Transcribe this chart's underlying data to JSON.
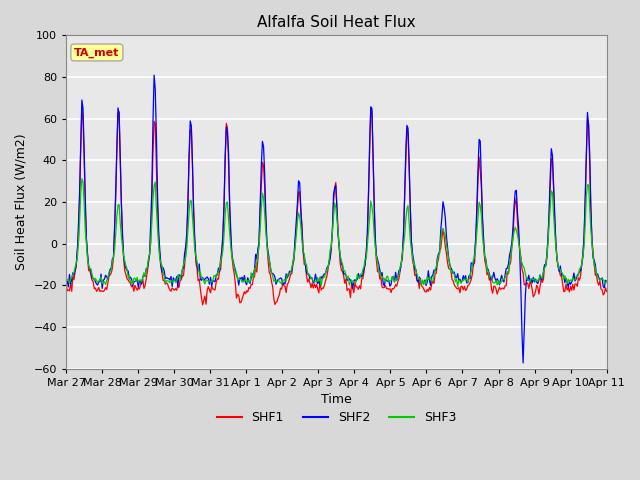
{
  "title": "Alfalfa Soil Heat Flux",
  "ylabel": "Soil Heat Flux (W/m2)",
  "xlabel": "Time",
  "ylim": [
    -60,
    100
  ],
  "annotation_text": "TA_met",
  "annotation_box_color": "#FFFF99",
  "annotation_border_color": "#AAAAAA",
  "annotation_text_color": "#CC0000",
  "series_colors": [
    "#FF0000",
    "#0000FF",
    "#00CC00"
  ],
  "series_names": [
    "SHF1",
    "SHF2",
    "SHF3"
  ],
  "x_tick_labels": [
    "Mar 27",
    "Mar 28",
    "Mar 29",
    "Mar 30",
    "Mar 31",
    "Apr 1",
    "Apr 2",
    "Apr 3",
    "Apr 4",
    "Apr 5",
    "Apr 6",
    "Apr 7",
    "Apr 8",
    "Apr 9",
    "Apr 10",
    "Apr 11"
  ],
  "background_color": "#D8D8D8",
  "plot_bg_color": "#E8E8E8",
  "grid_color": "#FFFFFF",
  "n_points": 480,
  "days": 15
}
